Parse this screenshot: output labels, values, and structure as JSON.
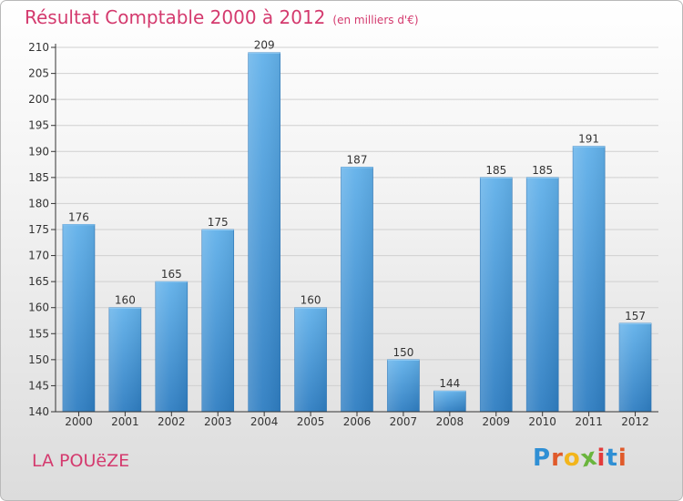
{
  "title": "Résultat Comptable 2000 à 2012",
  "subtitle": "(en milliers d'€)",
  "place_name": "LA POUëZE",
  "logo": {
    "letters": [
      "P",
      "r",
      "o",
      "x",
      "i",
      "t",
      "i"
    ],
    "colors": [
      "#2f8fd4",
      "#e05a2a",
      "#f2b51c",
      "#6ab53d",
      "#e33b3b",
      "#2f8fd4",
      "#e05a2a"
    ]
  },
  "colors": {
    "title": "#d43a6e",
    "bar_top": "#62b1ea",
    "bar_bottom": "#2f7ec2",
    "grid": "#d0d0d0",
    "axis": "#333333"
  },
  "chart_data": {
    "type": "bar",
    "title": "Résultat Comptable 2000 à 2012",
    "unit": "(en milliers d'€)",
    "categories": [
      "2000",
      "2001",
      "2002",
      "2003",
      "2004",
      "2005",
      "2006",
      "2007",
      "2008",
      "2009",
      "2010",
      "2011",
      "2012"
    ],
    "values": [
      176,
      160,
      165,
      175,
      209,
      160,
      187,
      150,
      144,
      185,
      185,
      191,
      157
    ],
    "ylim": [
      140,
      210
    ],
    "yticks": [
      140,
      145,
      150,
      155,
      160,
      165,
      170,
      175,
      180,
      185,
      190,
      195,
      200,
      205,
      210
    ],
    "grid": true,
    "xlabel": "",
    "ylabel": ""
  }
}
